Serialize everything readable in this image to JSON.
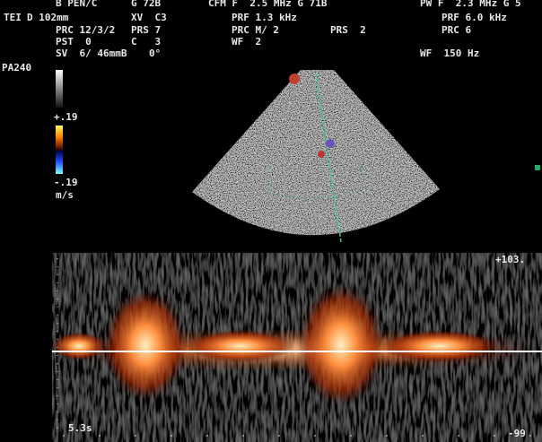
{
  "header": {
    "col1": [
      "B PEN/C",
      "TEI",
      "D 102mm",
      "PRC 12/3/2",
      "PST  0",
      "SV  6/ 46mmB"
    ],
    "col2": [
      "G 72B",
      "XV  C3",
      "PRS 7",
      "C   3",
      "0°"
    ],
    "col3": [
      "CFM F  2.5 MHz G 71B",
      "PRF 1.3 kHz",
      "PRC M/ 2",
      "WF  2"
    ],
    "col4": [
      "PRS  2"
    ],
    "col5": [
      "PW F  2.3 MHz G 5",
      "PRF 6.0 kHz",
      "PRC 6",
      "WF  150 Hz"
    ]
  },
  "color_scale": {
    "probe": "PA240",
    "max": "+.19",
    "min": "-.19",
    "unit": "m/s"
  },
  "doppler": {
    "top": "+103.",
    "bottom": "-99",
    "time": "5.3s"
  }
}
